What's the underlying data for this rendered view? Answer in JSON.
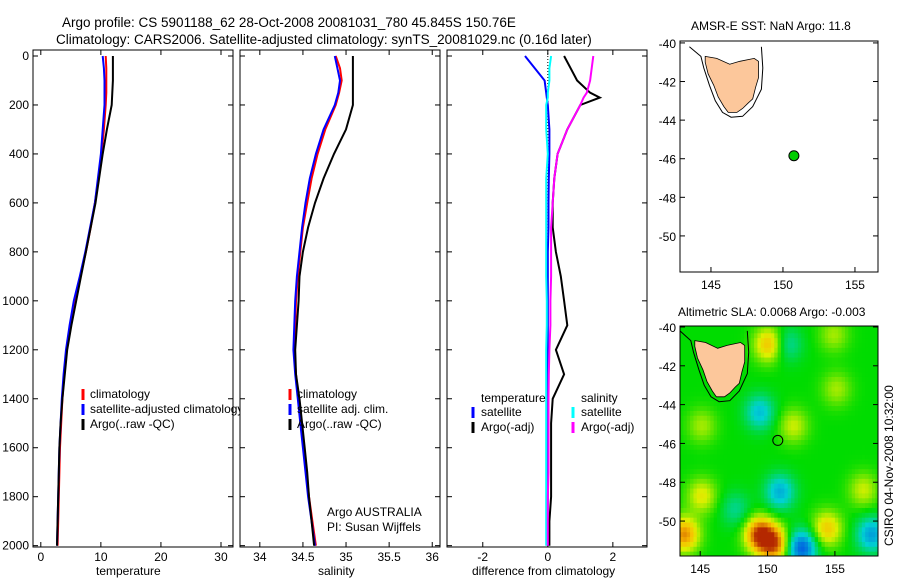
{
  "chart_data": [
    {
      "type": "line",
      "title": [
        "Argo profile: CS 5901188_62 28-Oct-2008 20081031_780 45.845S 150.76E",
        "Climatology: CARS2006. Satellite-adjusted climatology: synTS_20081029.nc (0.16d later)"
      ],
      "xlabel": "temperature",
      "ylabel": "",
      "xlim": [
        -1.3,
        32
      ],
      "ylim": [
        2030,
        0
      ],
      "xticks": [
        "0",
        "10",
        "20",
        "30"
      ],
      "xtickvals": [
        0,
        10,
        20,
        30
      ],
      "yticks": [
        "0",
        "200",
        "400",
        "600",
        "800",
        "1000",
        "1200",
        "1400",
        "1600",
        "1800",
        "2000"
      ],
      "ytickvals": [
        0,
        200,
        400,
        600,
        800,
        1000,
        1200,
        1400,
        1600,
        1800,
        2000
      ],
      "legend": [
        "climatology",
        "satellite-adjusted climatology",
        "Argo(..raw -QC)"
      ],
      "legend_placement": "lower-right",
      "depth": [
        0,
        50,
        100,
        150,
        200,
        300,
        400,
        500,
        600,
        700,
        800,
        900,
        1000,
        1100,
        1200,
        1300,
        1400,
        1500,
        1600,
        1700,
        1800,
        1900,
        2000
      ],
      "series": [
        {
          "name": "climatology",
          "color": "#ff0000",
          "values": [
            10.8,
            10.9,
            10.9,
            10.9,
            10.8,
            10.5,
            10.1,
            9.6,
            9.0,
            8.3,
            7.5,
            6.6,
            5.6,
            4.9,
            4.3,
            3.9,
            3.6,
            3.4,
            3.2,
            3.1,
            3.0,
            2.9,
            2.8
          ]
        },
        {
          "name": "satellite-adjusted climatology",
          "color": "#0000ff",
          "values": [
            10.3,
            10.5,
            10.6,
            10.6,
            10.6,
            10.3,
            10.0,
            9.5,
            9.0,
            8.2,
            7.4,
            6.5,
            5.5,
            4.8,
            4.2,
            3.8,
            3.5,
            3.3,
            3.1,
            3.0,
            2.9,
            2.8,
            2.7
          ]
        },
        {
          "name": "Argo(..raw -QC)",
          "color": "#000000",
          "values": [
            12.0,
            12.0,
            12.0,
            11.9,
            11.8,
            11.0,
            10.3,
            9.7,
            9.1,
            8.3,
            7.5,
            6.7,
            5.9,
            5.1,
            4.4,
            4.0,
            3.6,
            3.3,
            3.1,
            3.0,
            2.9,
            2.8,
            2.7
          ]
        }
      ]
    },
    {
      "type": "line",
      "xlabel": "salinity",
      "xlim": [
        33.77,
        36.09
      ],
      "ylim": [
        2030,
        0
      ],
      "xticks": [
        "34",
        "34.5",
        "35",
        "35.5",
        "36"
      ],
      "xtickvals": [
        34,
        34.5,
        35,
        35.5,
        36
      ],
      "legend": [
        "climatology",
        "satellite adj. clim.",
        "Argo(..raw -QC)"
      ],
      "legend_placement": "lower-right",
      "annotation": [
        "Argo AUSTRALIA",
        "PI: Susan Wijffels"
      ],
      "depth": [
        0,
        50,
        100,
        150,
        200,
        300,
        400,
        500,
        600,
        700,
        800,
        900,
        1000,
        1100,
        1200,
        1300,
        1400,
        1500,
        1600,
        1700,
        1800,
        1900,
        2000
      ],
      "series": [
        {
          "name": "climatology",
          "color": "#ff0000",
          "values": [
            34.88,
            34.93,
            34.95,
            34.92,
            34.88,
            34.76,
            34.67,
            34.6,
            34.55,
            34.5,
            34.47,
            34.44,
            34.42,
            34.41,
            34.4,
            34.42,
            34.45,
            34.48,
            34.51,
            34.54,
            34.57,
            34.61,
            34.65
          ]
        },
        {
          "name": "satellite adj. clim.",
          "color": "#0000ff",
          "values": [
            34.87,
            34.9,
            34.93,
            34.91,
            34.87,
            34.74,
            34.65,
            34.58,
            34.53,
            34.49,
            34.46,
            34.43,
            34.41,
            34.4,
            34.39,
            34.41,
            34.44,
            34.47,
            34.5,
            34.53,
            34.56,
            34.6,
            34.64
          ]
        },
        {
          "name": "Argo(..raw -QC)",
          "color": "#000000",
          "values": [
            35.08,
            35.08,
            35.08,
            35.08,
            35.08,
            35.0,
            34.86,
            34.74,
            34.64,
            34.56,
            34.5,
            34.46,
            34.45,
            34.43,
            34.41,
            34.42,
            34.46,
            34.49,
            34.52,
            34.55,
            34.57,
            34.6,
            34.63
          ]
        }
      ]
    },
    {
      "type": "line",
      "xlabel": "difference from climatology",
      "xlim": [
        -3.1,
        3.05
      ],
      "ylim": [
        2030,
        0
      ],
      "xticks": [
        "-2",
        "0",
        "2"
      ],
      "xtickvals": [
        -2,
        0,
        2
      ],
      "legend_headers": [
        "temperature",
        "salinity"
      ],
      "legend": [
        "satellite",
        "Argo(-adj)",
        "satellite",
        "Argo(-adj)"
      ],
      "legend_placement": "lower-center",
      "depth": [
        0,
        50,
        100,
        150,
        170,
        200,
        300,
        400,
        500,
        600,
        700,
        800,
        900,
        1000,
        1100,
        1200,
        1300,
        1400,
        1500,
        1600,
        1700,
        1800,
        1900,
        2000
      ],
      "series": [
        {
          "name": "temperature satellite",
          "color": "#0000ff",
          "values": [
            -0.7,
            -0.4,
            -0.1,
            -0.05,
            -0.03,
            0,
            0.05,
            0.05,
            0.03,
            0.02,
            0.02,
            0,
            0,
            0,
            0,
            0,
            0,
            0,
            0,
            0,
            0,
            0,
            0,
            0
          ]
        },
        {
          "name": "temperature Argo(-adj)",
          "color": "#000000",
          "values": [
            0.5,
            0.7,
            0.9,
            1.3,
            1.6,
            1.0,
            0.6,
            0.3,
            0.2,
            0.15,
            0.15,
            0.25,
            0.4,
            0.5,
            0.6,
            0.25,
            0.5,
            0.15,
            0.1,
            0.1,
            0.1,
            0.1,
            0.05,
            0.05
          ]
        },
        {
          "name": "salinity satellite",
          "color": "#00ffff",
          "values": [
            0.1,
            0.05,
            0.05,
            0.0,
            0,
            -0.05,
            -0.05,
            0,
            -0.05,
            -0.05,
            -0.05,
            -0.05,
            -0.05,
            -0.03,
            -0.03,
            -0.05,
            -0.05,
            -0.05,
            -0.05,
            -0.05,
            -0.05,
            -0.05,
            -0.05,
            -0.05
          ]
        },
        {
          "name": "salinity Argo(-adj)",
          "color": "#ff00ff",
          "values": [
            1.4,
            1.35,
            1.3,
            1.2,
            1.1,
            1.0,
            0.6,
            0.3,
            0.2,
            0.15,
            0.1,
            0.1,
            0.1,
            0.08,
            0.08,
            0.05,
            0.03,
            0.02,
            0.02,
            0.02,
            0.02,
            0.0,
            0.0,
            0.0
          ]
        }
      ]
    },
    {
      "type": "map",
      "title": "AMSR-E SST: NaN Argo: 11.8",
      "xlim": [
        142.85,
        156.6
      ],
      "ylim": [
        -51.87,
        -39.9
      ],
      "xticks": [
        "145",
        "150",
        "155"
      ],
      "xtickvals": [
        145,
        150,
        155
      ],
      "yticks": [
        "-40",
        "-42",
        "-44",
        "-46",
        "-48",
        "-50"
      ],
      "ytickvals": [
        -40,
        -42,
        -44,
        -46,
        -48,
        -50
      ],
      "argo_position": {
        "lon": 150.76,
        "lat": -45.845,
        "color": "#00cc00"
      }
    },
    {
      "type": "heatmap",
      "title": "Altimetric SLA: 0.0068 Argo: -0.003",
      "xlim": [
        143.5,
        158.2
      ],
      "ylim": [
        -51.8,
        -39.95
      ],
      "xticks": [
        "145",
        "150",
        "155"
      ],
      "xtickvals": [
        145,
        150,
        155
      ],
      "yticks": [
        "-40",
        "-42",
        "-44",
        "-46",
        "-48",
        "-50"
      ],
      "ytickvals": [
        -40,
        -42,
        -44,
        -46,
        -48,
        -50
      ],
      "argo_position": {
        "lon": 150.76,
        "lat": -45.845
      },
      "side_label": "CSIRO 04-Nov-2008 10:32:00",
      "anomaly_centres": [
        {
          "lon": 150,
          "lat": -41,
          "v": 0.9
        },
        {
          "lon": 149.3,
          "lat": -50.8,
          "v": 1.4
        },
        {
          "lon": 150.4,
          "lat": -51.3,
          "v": 1.2
        },
        {
          "lon": 143.7,
          "lat": -50.8,
          "v": 1.1
        },
        {
          "lon": 145,
          "lat": -48.8,
          "v": 0.6
        },
        {
          "lon": 154.3,
          "lat": -50.5,
          "v": 0.8
        },
        {
          "lon": 151.8,
          "lat": -45.2,
          "v": 0.5
        },
        {
          "lon": 154.8,
          "lat": -40.5,
          "v": 0.4
        },
        {
          "lon": 155,
          "lat": -43.3,
          "v": 0.4
        },
        {
          "lon": 157,
          "lat": -48.5,
          "v": 0.5
        },
        {
          "lon": 145,
          "lat": -45.2,
          "v": 0.4
        },
        {
          "lon": 152.4,
          "lat": -51.5,
          "v": -1.3
        },
        {
          "lon": 157.6,
          "lat": -50.8,
          "v": -0.9
        },
        {
          "lon": 150.8,
          "lat": -48.6,
          "v": -0.8
        },
        {
          "lon": 149.3,
          "lat": -44.5,
          "v": -0.7
        },
        {
          "lon": 151.3,
          "lat": -41,
          "v": -0.5
        },
        {
          "lon": 147.5,
          "lat": -49.5,
          "v": -0.4
        }
      ]
    }
  ],
  "coastline_tasmania": [
    [
      144.6,
      -40.7
    ],
    [
      145.4,
      -40.8
    ],
    [
      146.3,
      -41.1
    ],
    [
      147.0,
      -40.95
    ],
    [
      148.0,
      -40.8
    ],
    [
      148.3,
      -40.95
    ],
    [
      148.3,
      -41.8
    ],
    [
      148.1,
      -42.3
    ],
    [
      147.9,
      -42.9
    ],
    [
      147.6,
      -43.1
    ],
    [
      147.2,
      -43.4
    ],
    [
      146.8,
      -43.6
    ],
    [
      146.2,
      -43.6
    ],
    [
      145.9,
      -43.3
    ],
    [
      145.5,
      -42.8
    ],
    [
      145.2,
      -42.2
    ],
    [
      144.8,
      -41.6
    ],
    [
      144.6,
      -41.0
    ]
  ],
  "shelf_tasmania": [
    [
      143.5,
      -40.2
    ],
    [
      144.3,
      -40.7
    ],
    [
      144.5,
      -41.3
    ],
    [
      144.9,
      -42.2
    ],
    [
      145.3,
      -43.0
    ],
    [
      145.8,
      -43.6
    ],
    [
      146.4,
      -43.85
    ],
    [
      147.2,
      -43.8
    ],
    [
      147.9,
      -43.3
    ],
    [
      148.5,
      -42.4
    ],
    [
      148.6,
      -41.3
    ],
    [
      148.5,
      -40.2
    ]
  ]
}
